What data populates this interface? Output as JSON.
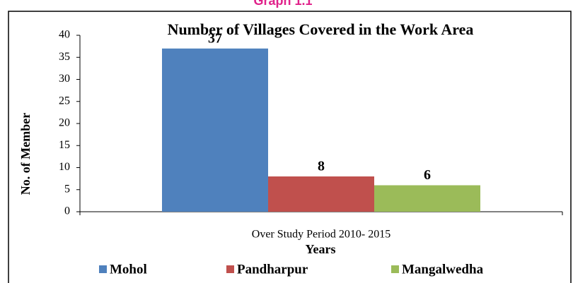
{
  "header": "Graph 1.1",
  "chart_data": {
    "type": "bar",
    "title": "Number of Villages Covered in the Work Area",
    "categories": [
      "Over Study Period 2010- 2015"
    ],
    "series": [
      {
        "name": "Mohol",
        "color": "#4f81bd",
        "values": [
          37
        ]
      },
      {
        "name": "Pandharpur",
        "color": "#c0504d",
        "values": [
          8
        ]
      },
      {
        "name": "Mangalwedha",
        "color": "#9bbb59",
        "values": [
          6
        ]
      }
    ],
    "x_label": "Years",
    "y_label": "No. of Member",
    "ylim": [
      0,
      40
    ],
    "yticks": [
      0,
      5,
      10,
      15,
      20,
      25,
      30,
      35,
      40
    ],
    "legend": "bottom"
  }
}
